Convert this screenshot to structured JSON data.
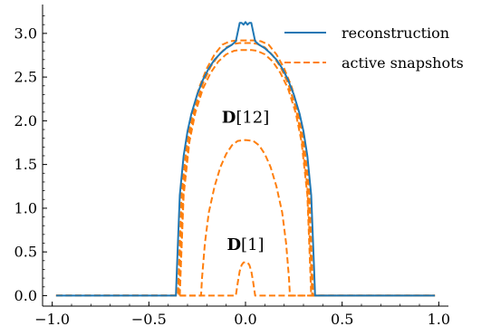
{
  "chart_data": {
    "type": "line",
    "title": "",
    "xlabel": "",
    "ylabel": "",
    "xlim": [
      -1.05,
      1.05
    ],
    "ylim": [
      -0.12,
      3.33
    ],
    "xticks": [
      -1.0,
      -0.5,
      0.0,
      0.5,
      1.0
    ],
    "xtick_labels": [
      "−1.0",
      "−0.5",
      "0.0",
      "0.5",
      "1.0"
    ],
    "yticks": [
      0.0,
      0.5,
      1.0,
      1.5,
      2.0,
      2.5,
      3.0
    ],
    "ytick_labels": [
      "0.0",
      "0.5",
      "1.0",
      "1.5",
      "2.0",
      "2.5",
      "3.0"
    ],
    "grid": false,
    "legend": {
      "placement": "top-right",
      "entries": [
        {
          "label": "reconstruction",
          "color": "#1f77b4",
          "style": "solid"
        },
        {
          "label": "active snapshots",
          "color": "#ff7f0e",
          "style": "dashed"
        }
      ]
    },
    "annotations": [
      {
        "bold": "D",
        "rest": "[12]",
        "x": 0.0,
        "y": 1.98
      },
      {
        "bold": "D",
        "rest": "[1]",
        "x": 0.0,
        "y": 0.52
      }
    ],
    "series": [
      {
        "name": "reconstruction",
        "color": "#1f77b4",
        "style": "solid",
        "x": [
          -0.98,
          -0.36,
          -0.355,
          -0.34,
          -0.32,
          -0.3,
          -0.28,
          -0.25,
          -0.22,
          -0.19,
          -0.16,
          -0.13,
          -0.1,
          -0.07,
          -0.05,
          -0.03,
          -0.02,
          -0.01,
          0.0,
          0.01,
          0.02,
          0.03,
          0.05,
          0.07,
          0.1,
          0.13,
          0.16,
          0.19,
          0.22,
          0.25,
          0.28,
          0.3,
          0.32,
          0.34,
          0.355,
          0.36,
          0.98
        ],
        "y": [
          0.0,
          0.0,
          0.3,
          1.15,
          1.6,
          1.88,
          2.08,
          2.3,
          2.47,
          2.6,
          2.7,
          2.77,
          2.83,
          2.87,
          2.91,
          3.12,
          3.12,
          3.1,
          3.13,
          3.1,
          3.12,
          3.12,
          2.91,
          2.87,
          2.83,
          2.77,
          2.7,
          2.6,
          2.47,
          2.3,
          2.08,
          1.88,
          1.6,
          1.15,
          0.3,
          0.0,
          0.0
        ]
      },
      {
        "name": "active snapshots",
        "color": "#ff7f0e",
        "style": "dashed",
        "x": [
          -0.98,
          -0.35,
          -0.345,
          -0.33,
          -0.3,
          -0.27,
          -0.24,
          -0.2,
          -0.16,
          -0.12,
          -0.08,
          -0.04,
          0.0,
          0.04,
          0.08,
          0.12,
          0.16,
          0.2,
          0.24,
          0.27,
          0.3,
          0.33,
          0.345,
          0.35,
          0.98
        ],
        "y": [
          0.0,
          0.0,
          0.3,
          1.2,
          1.8,
          2.13,
          2.38,
          2.6,
          2.76,
          2.87,
          2.91,
          2.92,
          2.92,
          2.92,
          2.91,
          2.87,
          2.76,
          2.6,
          2.38,
          2.13,
          1.8,
          1.2,
          0.3,
          0.0,
          0.0
        ]
      },
      {
        "name": "active snapshots",
        "color": "#ff7f0e",
        "style": "dashed",
        "x": [
          -0.98,
          -0.345,
          -0.34,
          -0.32,
          -0.29,
          -0.26,
          -0.22,
          -0.18,
          -0.14,
          -0.1,
          -0.06,
          -0.03,
          0.0,
          0.03,
          0.06,
          0.1,
          0.14,
          0.18,
          0.22,
          0.26,
          0.29,
          0.32,
          0.34,
          0.345,
          0.98
        ],
        "y": [
          0.0,
          0.0,
          0.3,
          1.25,
          1.82,
          2.15,
          2.43,
          2.62,
          2.75,
          2.84,
          2.88,
          2.89,
          2.89,
          2.89,
          2.88,
          2.84,
          2.75,
          2.62,
          2.43,
          2.15,
          1.82,
          1.25,
          0.3,
          0.0,
          0.0
        ]
      },
      {
        "name": "active snapshots",
        "color": "#ff7f0e",
        "style": "dashed",
        "x": [
          -0.98,
          -0.34,
          -0.335,
          -0.32,
          -0.29,
          -0.26,
          -0.22,
          -0.18,
          -0.14,
          -0.1,
          -0.06,
          -0.03,
          0.0,
          0.03,
          0.06,
          0.1,
          0.14,
          0.18,
          0.22,
          0.26,
          0.29,
          0.32,
          0.335,
          0.34,
          0.98
        ],
        "y": [
          0.0,
          0.0,
          0.3,
          1.15,
          1.76,
          2.09,
          2.37,
          2.55,
          2.68,
          2.76,
          2.8,
          2.81,
          2.81,
          2.81,
          2.8,
          2.76,
          2.68,
          2.55,
          2.37,
          2.09,
          1.76,
          1.15,
          0.3,
          0.0,
          0.0
        ]
      },
      {
        "name": "active snapshots",
        "color": "#ff7f0e",
        "style": "dashed",
        "x": [
          -0.98,
          -0.23,
          -0.225,
          -0.21,
          -0.19,
          -0.16,
          -0.13,
          -0.1,
          -0.07,
          -0.04,
          0.0,
          0.04,
          0.07,
          0.1,
          0.13,
          0.16,
          0.19,
          0.21,
          0.225,
          0.23,
          0.98
        ],
        "y": [
          0.0,
          0.0,
          0.2,
          0.6,
          0.95,
          1.25,
          1.47,
          1.62,
          1.72,
          1.77,
          1.78,
          1.77,
          1.72,
          1.62,
          1.47,
          1.25,
          0.95,
          0.6,
          0.2,
          0.0,
          0.0
        ]
      },
      {
        "name": "active snapshots",
        "color": "#ff7f0e",
        "style": "dashed",
        "x": [
          -0.98,
          -0.05,
          -0.04,
          -0.03,
          -0.02,
          -0.01,
          0.0,
          0.01,
          0.02,
          0.03,
          0.04,
          0.05,
          0.98
        ],
        "y": [
          0.0,
          0.0,
          0.15,
          0.28,
          0.35,
          0.38,
          0.38,
          0.38,
          0.35,
          0.28,
          0.15,
          0.0,
          0.0
        ]
      }
    ]
  }
}
